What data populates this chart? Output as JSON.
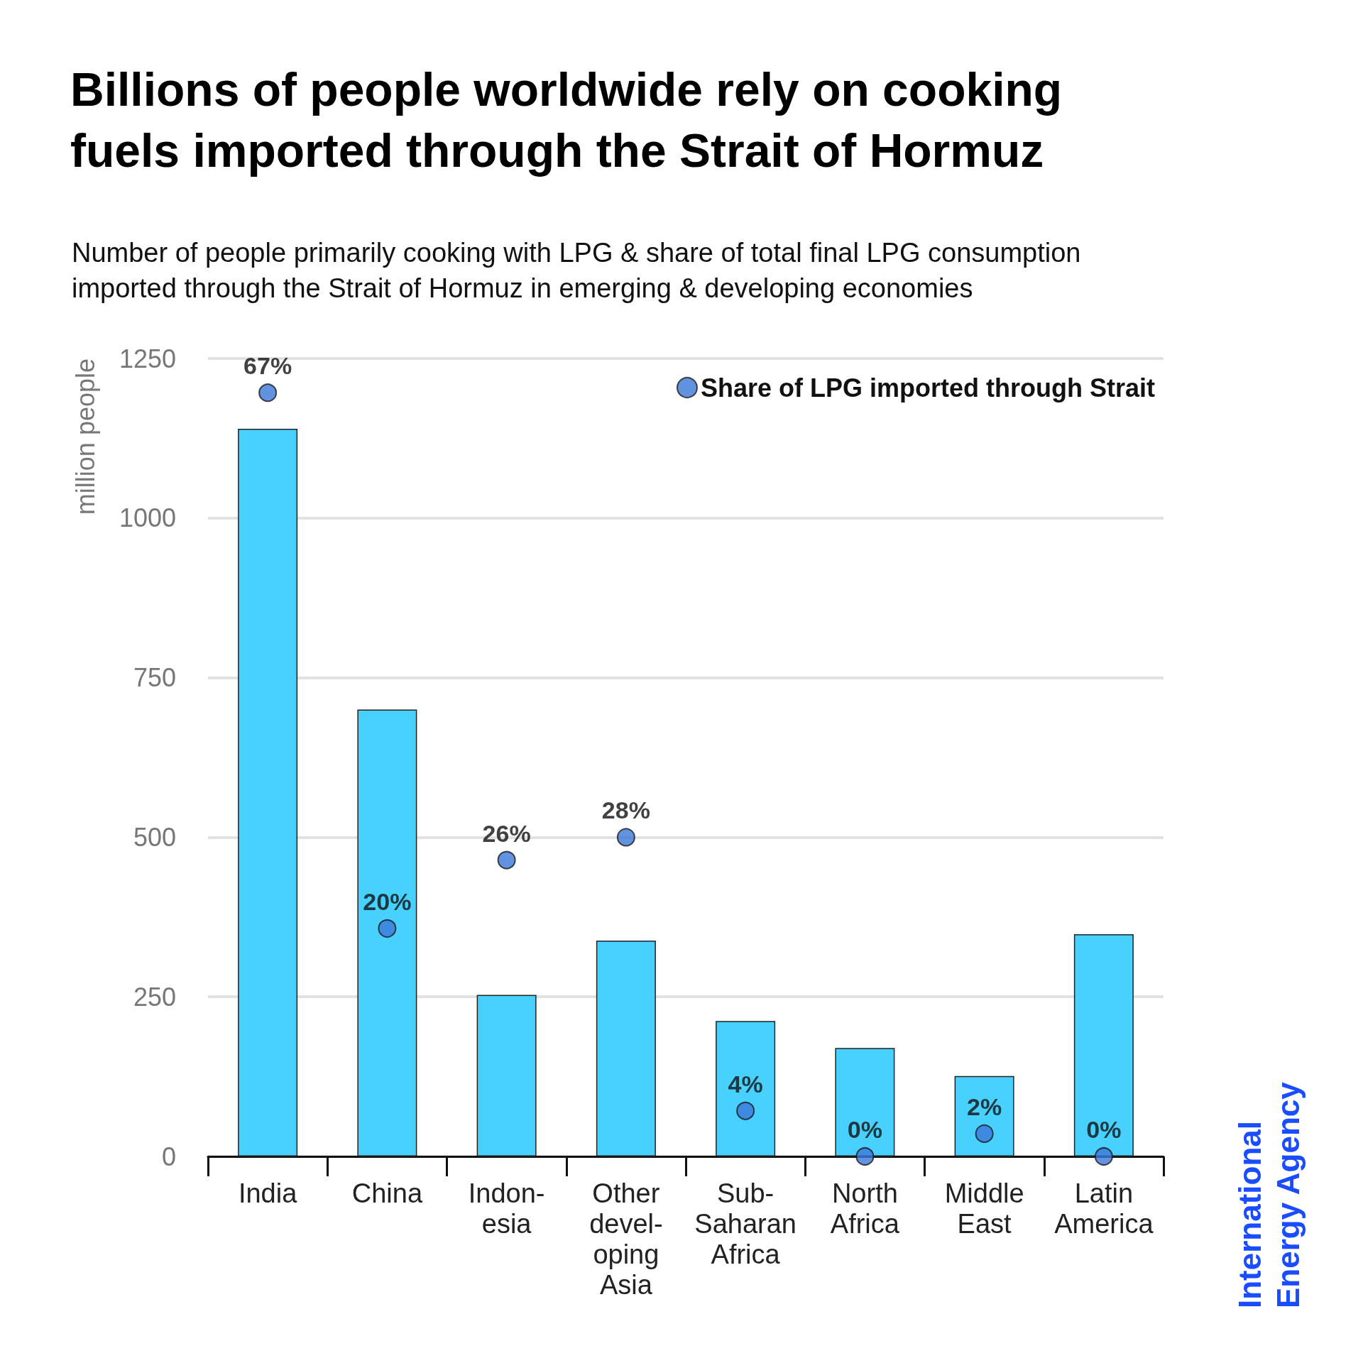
{
  "chart_data": {
    "type": "bar",
    "title": "Billions of people worldwide rely on cooking\nfuels imported through the Strait of Hormuz",
    "subtitle": "Number of people primarily cooking with LPG & share of total final LPG consumption\nimported through the Strait of Hormuz in emerging & developing economies",
    "ylabel": "million people",
    "categories": [
      "India",
      "China",
      "Indon-\nesia",
      "Other\ndevel-\noping\nAsia",
      "Sub-\nSaharan\nAfrica",
      "North\nAfrica",
      "Middle\nEast",
      "Latin\nAmerica"
    ],
    "series": [
      {
        "color": "#48d1ff",
        "values": [
          1140,
          700,
          253,
          338,
          212,
          170,
          126,
          348
        ]
      },
      {
        "type": "scatter",
        "name": "Share of LPG imported through Strait",
        "axis": "y2",
        "color": "#3b78d8",
        "values": [
          67,
          20,
          26,
          28,
          4,
          0,
          2,
          0
        ],
        "value_labels": [
          "67%",
          "20%",
          "26%",
          "28%",
          "4%",
          "0%",
          "2%",
          "0%"
        ]
      }
    ],
    "ylim": [
      0,
      1250
    ],
    "yticks": [
      0,
      250,
      500,
      750,
      1000,
      1250
    ],
    "tick_labels": "xy",
    "grid": "y",
    "legend": "top right",
    "marker": "circle",
    "annotations": [
      "International\nEnergy Agency"
    ]
  }
}
